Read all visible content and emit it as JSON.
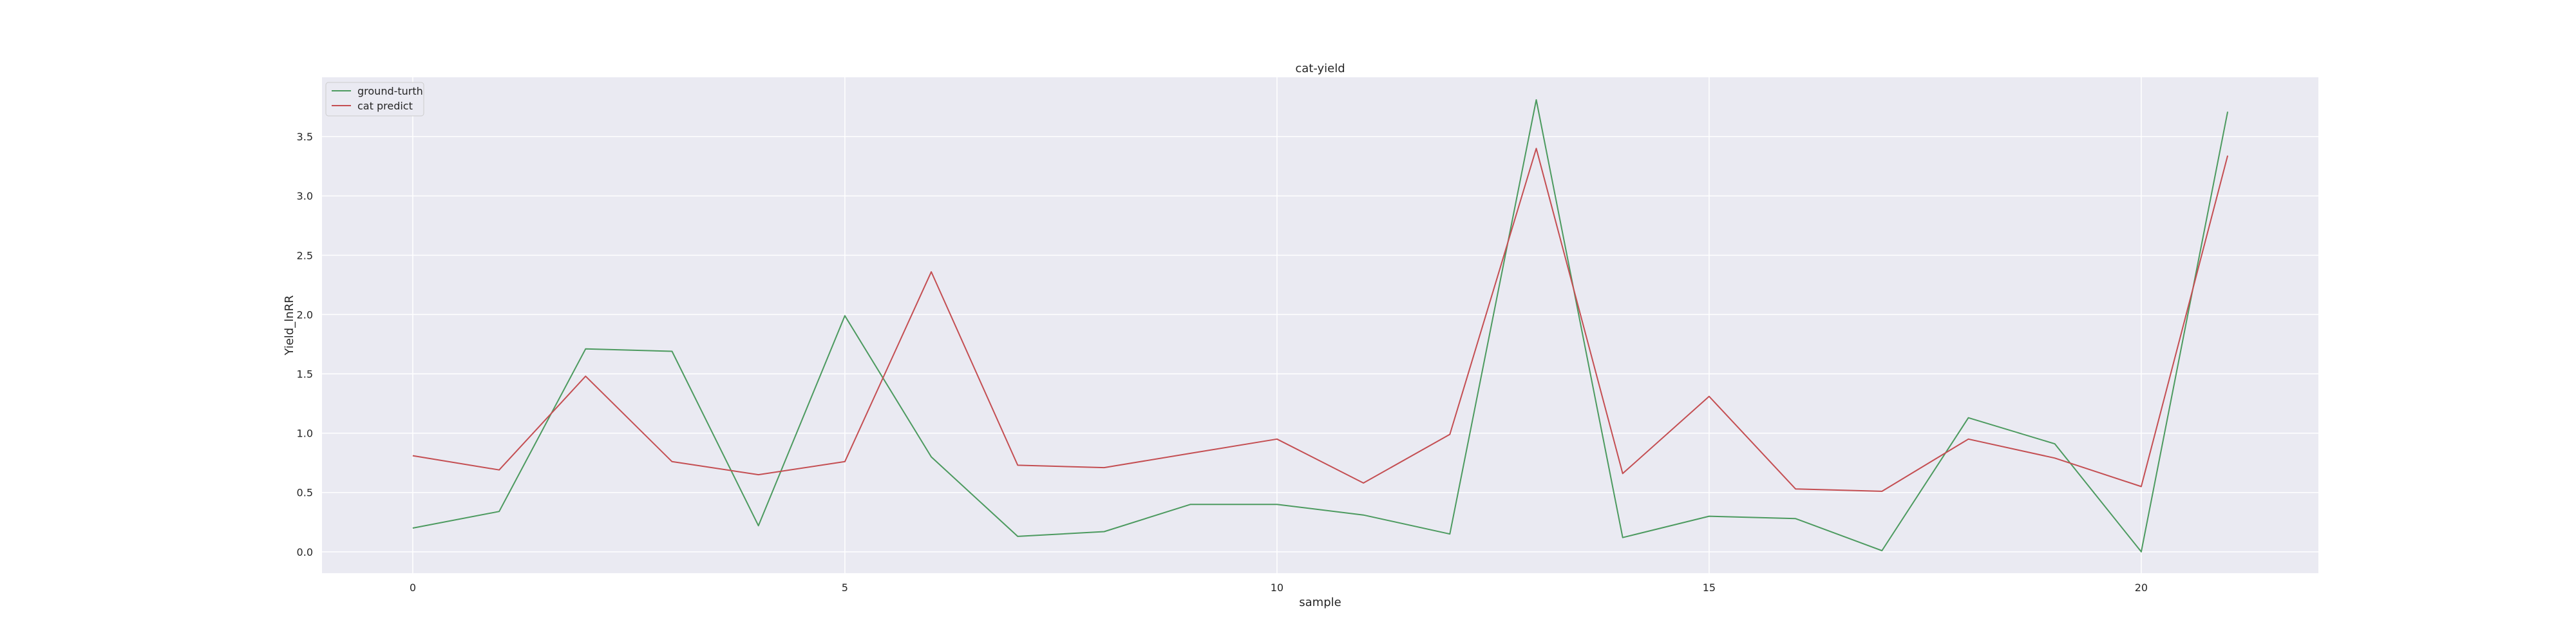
{
  "chart_data": {
    "type": "line",
    "title": "cat-yield",
    "xlabel": "sample",
    "ylabel": "Yield_lnRR",
    "xlim": [
      -1.05,
      22.05
    ],
    "ylim": [
      -0.18,
      4.0
    ],
    "xticks": [
      0,
      5,
      10,
      15,
      20
    ],
    "yticks": [
      0.0,
      0.5,
      1.0,
      1.5,
      2.0,
      2.5,
      3.0,
      3.5
    ],
    "ytick_labels": [
      "0.0",
      "0.5",
      "1.0",
      "1.5",
      "2.0",
      "2.5",
      "3.0",
      "3.5"
    ],
    "grid": true,
    "legend_position": "top-left",
    "x": [
      0,
      1,
      2,
      3,
      4,
      5,
      6,
      7,
      8,
      9,
      10,
      11,
      12,
      13,
      14,
      15,
      16,
      17,
      18,
      19,
      20,
      21
    ],
    "series": [
      {
        "name": "ground-turth",
        "color": "#4c9a5f",
        "values": [
          0.2,
          0.34,
          1.71,
          1.69,
          0.22,
          1.99,
          0.8,
          0.13,
          0.17,
          0.4,
          0.4,
          0.31,
          0.15,
          3.81,
          0.12,
          0.3,
          0.28,
          0.01,
          1.13,
          0.91,
          0.0,
          3.71
        ]
      },
      {
        "name": "cat predict",
        "color": "#c44e52",
        "values": [
          0.81,
          0.69,
          1.48,
          0.76,
          0.65,
          0.76,
          2.36,
          0.73,
          0.71,
          0.83,
          0.95,
          0.58,
          0.99,
          3.4,
          0.66,
          1.31,
          0.53,
          0.51,
          0.95,
          0.79,
          0.55,
          3.34
        ]
      }
    ],
    "colors": {
      "plot_background": "#eaeaf2",
      "grid": "#ffffff",
      "text": "#262626"
    }
  }
}
